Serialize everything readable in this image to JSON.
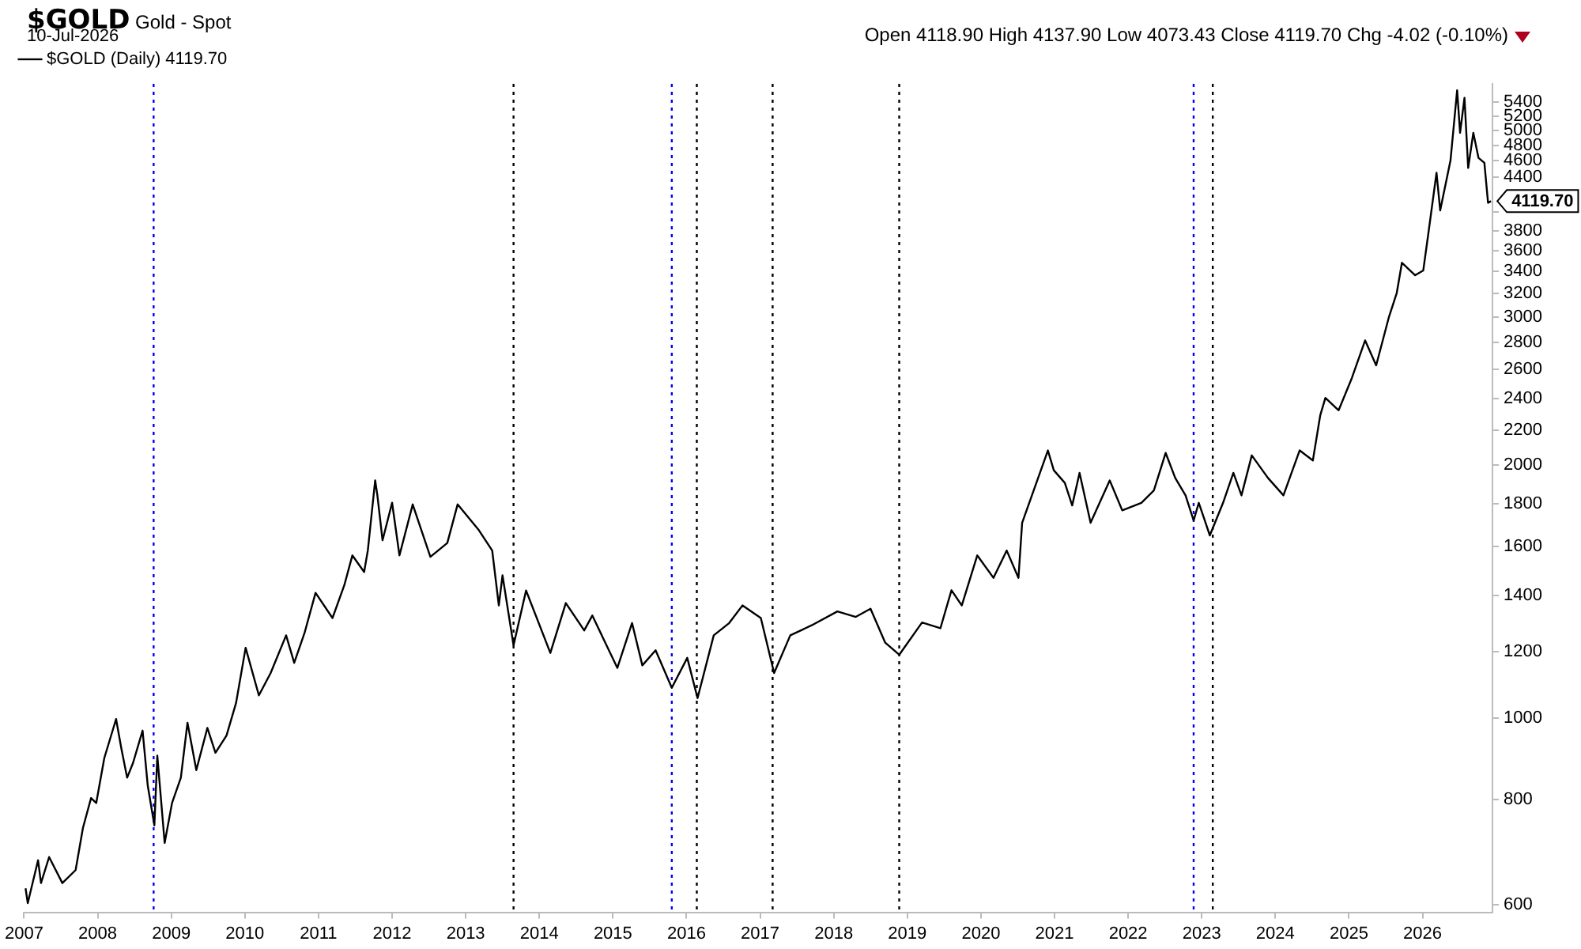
{
  "chart_data": {
    "type": "line",
    "title": "$GOLD",
    "subtitle": "Gold - Spot",
    "annotations": [
      "10-Jul-2026",
      "Open 4118.90 High 4137.90 Low 4073.43 Close 4119.70 Chg -4.02 (-0.10%)",
      {
        "text": "4119.70",
        "x": 2026.93,
        "y": 4119.7
      }
    ],
    "x": [
      2007.02,
      2007.05,
      2007.19,
      2007.23,
      2007.34,
      2007.52,
      2007.7,
      2007.8,
      2007.91,
      2007.98,
      2008.09,
      2008.25,
      2008.32,
      2008.4,
      2008.48,
      2008.61,
      2008.68,
      2008.77,
      2008.81,
      2008.91,
      2009.01,
      2009.13,
      2009.22,
      2009.34,
      2009.49,
      2009.6,
      2009.75,
      2009.88,
      2010.01,
      2010.19,
      2010.35,
      2010.56,
      2010.67,
      2010.81,
      2010.96,
      2011.19,
      2011.35,
      2011.46,
      2011.62,
      2011.67,
      2011.77,
      2011.8,
      2011.87,
      2012.0,
      2012.1,
      2012.28,
      2012.52,
      2012.75,
      2012.89,
      2013.18,
      2013.36,
      2013.45,
      2013.5,
      2013.65,
      2013.82,
      2014.15,
      2014.36,
      2014.61,
      2014.72,
      2015.06,
      2015.26,
      2015.4,
      2015.58,
      2015.8,
      2016.01,
      2016.15,
      2016.37,
      2016.58,
      2016.76,
      2017.01,
      2017.19,
      2017.41,
      2017.7,
      2018.05,
      2018.3,
      2018.5,
      2018.7,
      2018.89,
      2019.2,
      2019.45,
      2019.6,
      2019.74,
      2019.95,
      2020.17,
      2020.35,
      2020.51,
      2020.56,
      2020.91,
      2020.99,
      2021.14,
      2021.24,
      2021.34,
      2021.49,
      2021.75,
      2021.92,
      2022.18,
      2022.35,
      2022.51,
      2022.64,
      2022.78,
      2022.89,
      2022.96,
      2023.11,
      2023.29,
      2023.43,
      2023.54,
      2023.68,
      2023.9,
      2024.11,
      2024.33,
      2024.51,
      2024.61,
      2024.68,
      2024.86,
      2025.04,
      2025.22,
      2025.37,
      2025.54,
      2025.65,
      2025.72,
      2025.9,
      2026.01,
      2026.08,
      2026.19,
      2026.24,
      2026.38,
      2026.47,
      2026.51,
      2026.57,
      2026.62,
      2026.69,
      2026.76,
      2026.84,
      2026.89,
      2026.93
    ],
    "series": [
      {
        "name": "$GOLD (Daily) 4119.70",
        "color": "#000000",
        "values": [
          628,
          603,
          678,
          637,
          684,
          637,
          660,
          741,
          804,
          793,
          897,
          998,
          922,
          850,
          885,
          967,
          832,
          746,
          903,
          711,
          793,
          850,
          988,
          868,
          974,
          910,
          954,
          1043,
          1213,
          1065,
          1132,
          1255,
          1164,
          1263,
          1410,
          1316,
          1439,
          1562,
          1493,
          1583,
          1918,
          1841,
          1628,
          1804,
          1562,
          1796,
          1556,
          1616,
          1796,
          1673,
          1583,
          1362,
          1479,
          1221,
          1419,
          1196,
          1371,
          1272,
          1325,
          1148,
          1298,
          1156,
          1205,
          1087,
          1180,
          1057,
          1255,
          1298,
          1362,
          1316,
          1132,
          1255,
          1290,
          1340,
          1320,
          1350,
          1230,
          1190,
          1300,
          1280,
          1420,
          1362,
          1562,
          1469,
          1583,
          1469,
          1708,
          2082,
          1972,
          1905,
          1791,
          1958,
          1708,
          1918,
          1767,
          1804,
          1866,
          2068,
          1931,
          1841,
          1719,
          1804,
          1650,
          1804,
          1958,
          1841,
          2054,
          1931,
          1841,
          2082,
          2026,
          2292,
          2404,
          2324,
          2539,
          2814,
          2628,
          2993,
          3205,
          3480,
          3363,
          3408,
          3777,
          4452,
          4017,
          4606,
          5580,
          4967,
          5466,
          4512,
          4967,
          4638,
          4575,
          4101,
          4119.7
        ]
      }
    ],
    "xlim": [
      2007,
      2026.95
    ],
    "xticks": [
      2007,
      2008,
      2009,
      2010,
      2011,
      2012,
      2013,
      2014,
      2015,
      2016,
      2017,
      2018,
      2019,
      2020,
      2021,
      2022,
      2023,
      2024,
      2025,
      2026
    ],
    "ylim": [
      588,
      5680
    ],
    "yticks": [
      600,
      800,
      1000,
      1200,
      1400,
      1600,
      1800,
      2000,
      2200,
      2400,
      2600,
      2800,
      3000,
      3200,
      3400,
      3600,
      3800,
      {
        "value": 4000,
        "label": null
      },
      4400,
      4600,
      4800,
      5000,
      5200,
      5400
    ],
    "log": "y",
    "grid": false,
    "legend": "top left",
    "marker": "none",
    "line_style": "solid",
    "ref_lines": [
      {
        "axis": "x",
        "value": 2008.76,
        "color": "#0000ff",
        "line_style": "dotted"
      },
      {
        "axis": "x",
        "value": 2013.65,
        "color": "#000000",
        "line_style": "dotted"
      },
      {
        "axis": "x",
        "value": 2015.8,
        "color": "#0000ff",
        "line_style": "dotted"
      },
      {
        "axis": "x",
        "value": 2016.14,
        "color": "#000000",
        "line_style": "dotted"
      },
      {
        "axis": "x",
        "value": 2017.17,
        "color": "#000000",
        "line_style": "dotted"
      },
      {
        "axis": "x",
        "value": 2018.89,
        "color": "#000000",
        "line_style": "dotted"
      },
      {
        "axis": "x",
        "value": 2022.89,
        "color": "#0000ff",
        "line_style": "dotted"
      },
      {
        "axis": "x",
        "value": 2023.15,
        "color": "#000000",
        "line_style": "dotted"
      }
    ]
  }
}
